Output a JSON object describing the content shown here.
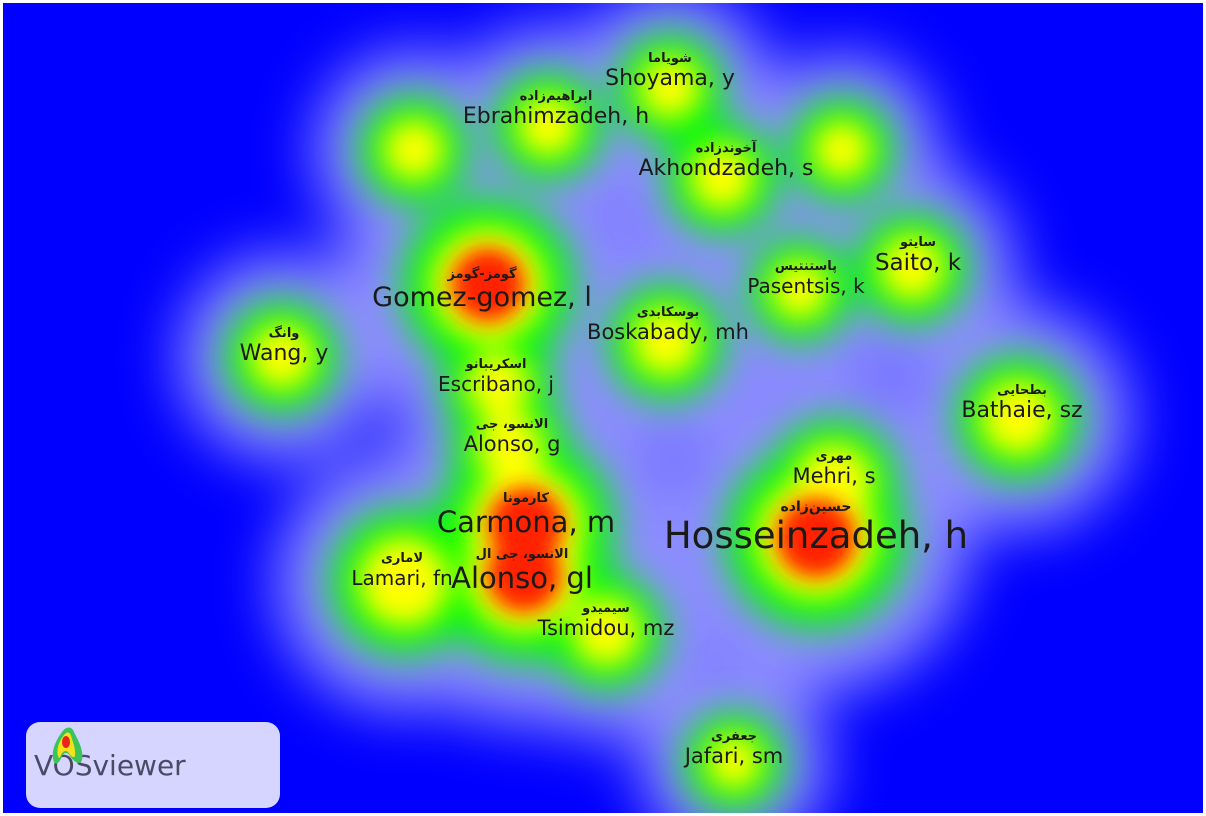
{
  "app": {
    "logo_text": "VOSviewer"
  },
  "colors": {
    "background": "#0000ff",
    "frame": "#ffffff",
    "low": "#0000ff",
    "mid": "#00ff00",
    "high_mid": "#ffff00",
    "high": "#ff2000"
  },
  "nodes": [
    {
      "id": "shoyama",
      "fa": "شویاما",
      "en": "Shoyama, y",
      "density": 0.5
    },
    {
      "id": "ebrahimzadeh",
      "fa": "ابراهیم‌زاده",
      "en": "Ebrahimzadeh, h",
      "density": 0.5
    },
    {
      "id": "akhondzadeh",
      "fa": "آخوندزاده",
      "en": "Akhondzadeh, s",
      "density": 0.55
    },
    {
      "id": "gomez",
      "fa": "گومز-گومز",
      "en": "Gomez-gomez, l",
      "density": 0.95
    },
    {
      "id": "saito",
      "fa": "سایتو",
      "en": "Saito, k",
      "density": 0.55
    },
    {
      "id": "pasentsis",
      "fa": "پاستنتیس",
      "en": "Pasentsis, k",
      "density": 0.45
    },
    {
      "id": "boskabady",
      "fa": "بوسکابدی",
      "en": "Boskabady, mh",
      "density": 0.6
    },
    {
      "id": "wang",
      "fa": "وانگ",
      "en": "Wang, y",
      "density": 0.55
    },
    {
      "id": "escribano",
      "fa": "اسکریبانو",
      "en": "Escribano, j",
      "density": 0.55
    },
    {
      "id": "alonso_g",
      "fa": "الانسو، جی",
      "en": "Alonso, g",
      "density": 0.6
    },
    {
      "id": "bathaie",
      "fa": "بطحایی",
      "en": "Bathaie, sz",
      "density": 0.7
    },
    {
      "id": "mehri",
      "fa": "مهری",
      "en": "Mehri, s",
      "density": 0.75
    },
    {
      "id": "hosseinzadeh",
      "fa": "حسین‌زاده",
      "en": "Hosseinzadeh, h",
      "density": 1.0
    },
    {
      "id": "carmona",
      "fa": "کارمونا",
      "en": "Carmona, m",
      "density": 0.95
    },
    {
      "id": "alonso_gl",
      "fa": "الانسو، جی ال",
      "en": "Alonso, gl",
      "density": 0.95
    },
    {
      "id": "lamari",
      "fa": "لاماری",
      "en": "Lamari, fn",
      "density": 0.7
    },
    {
      "id": "tsimidou",
      "fa": "سیمیدو",
      "en": "Tsimidou, mz",
      "density": 0.6
    },
    {
      "id": "jafari",
      "fa": "جعفری",
      "en": "Jafari, sm",
      "density": 0.4
    }
  ],
  "unlabeled_spots": [
    {
      "id": "spot_left",
      "density": 0.5
    },
    {
      "id": "spot_right",
      "density": 0.45
    }
  ]
}
